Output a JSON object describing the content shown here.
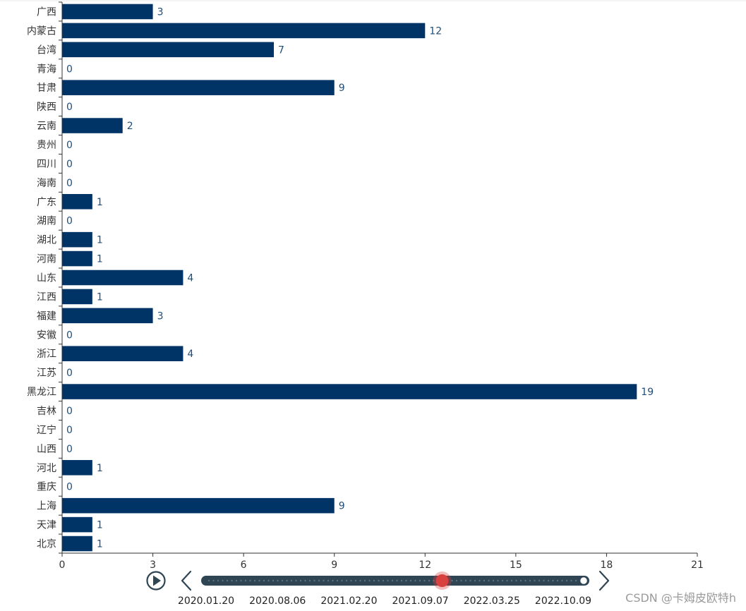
{
  "chart_data": {
    "type": "bar",
    "orientation": "horizontal",
    "categories": [
      "广西",
      "内蒙古",
      "台湾",
      "青海",
      "甘肃",
      "陕西",
      "云南",
      "贵州",
      "四川",
      "海南",
      "广东",
      "湖南",
      "湖北",
      "河南",
      "山东",
      "江西",
      "福建",
      "安徽",
      "浙江",
      "江苏",
      "黑龙江",
      "吉林",
      "辽宁",
      "山西",
      "河北",
      "重庆",
      "上海",
      "天津",
      "北京"
    ],
    "values": [
      3,
      12,
      7,
      0,
      9,
      0,
      2,
      0,
      0,
      0,
      1,
      0,
      1,
      1,
      4,
      1,
      3,
      0,
      4,
      0,
      19,
      0,
      0,
      0,
      1,
      0,
      9,
      1,
      1
    ],
    "xlim": [
      0,
      21
    ],
    "xticks": [
      "0",
      "3",
      "6",
      "9",
      "12",
      "15",
      "18",
      "21"
    ],
    "bar_color": "#003366",
    "label_color": "#1f4e79",
    "grid": false,
    "show_value_labels": true
  },
  "timeline": {
    "play_icon": "play-icon",
    "prev_icon": "chevron-left-icon",
    "next_icon": "chevron-right-icon",
    "labels": [
      "2020.01.20",
      "2020.08.06",
      "2021.02.20",
      "2021.09.07",
      "2022.03.25",
      "2022.10.09"
    ],
    "progress": 0.624,
    "track_color": "#2f4554",
    "handle_color": "#d94040"
  },
  "watermark": "CSDN @卡姆皮欧特h"
}
